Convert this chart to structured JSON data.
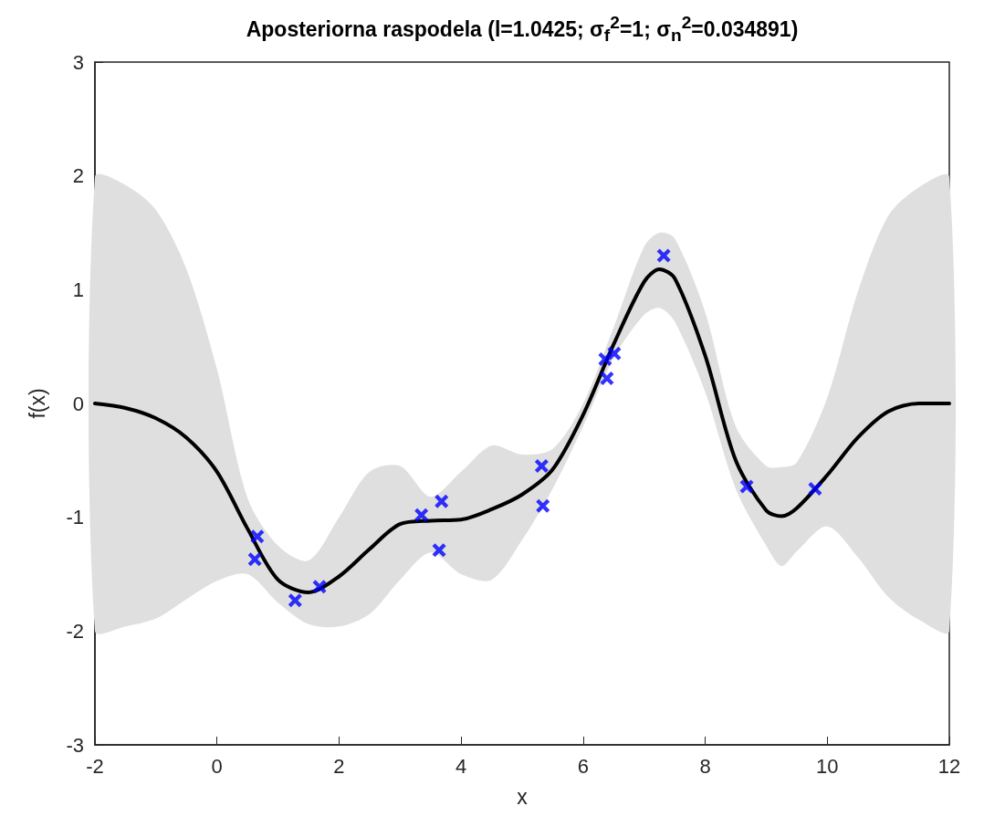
{
  "chart_data": {
    "type": "line",
    "title": "Aposteriorna raspodela (l=1.0425; σ$_{f}$$^{2}$=1; σ$_{n}$$^{2}$=0.034891)",
    "xlabel": "x",
    "ylabel": "f(x)",
    "xlim": [
      -2,
      12
    ],
    "xticks": [
      -2,
      0,
      2,
      4,
      6,
      8,
      10,
      12
    ],
    "ylim": [
      -3,
      3
    ],
    "yticks": [
      -3,
      -2,
      -1,
      0,
      1,
      2,
      3
    ],
    "grid": false,
    "series": [
      {
        "color": "#000000",
        "marker": "none",
        "line_style": "solid",
        "x": [
          -2,
          -1.5,
          -1,
          -0.5,
          0,
          0.5,
          1,
          1.5,
          2,
          2.5,
          3,
          3.5,
          4,
          4.5,
          5,
          5.5,
          6,
          6.5,
          7,
          7.25,
          7.5,
          8,
          8.5,
          9,
          9.25,
          9.5,
          10,
          10.5,
          11,
          11.5,
          12
        ],
        "values": [
          0,
          -0.04,
          -0.13,
          -0.3,
          -0.6,
          -1.1,
          -1.55,
          -1.66,
          -1.52,
          -1.28,
          -1.06,
          -1.03,
          -1.02,
          -0.93,
          -0.8,
          -0.58,
          -0.1,
          0.52,
          1.07,
          1.18,
          1.1,
          0.42,
          -0.5,
          -0.94,
          -0.99,
          -0.92,
          -0.63,
          -0.3,
          -0.07,
          0,
          0
        ],
        "upper": [
          1.99,
          1.92,
          1.7,
          1.18,
          0.3,
          -0.83,
          -1.25,
          -1.38,
          -1.0,
          -0.6,
          -0.55,
          -0.82,
          -0.6,
          -0.37,
          -0.45,
          -0.4,
          0.0,
          0.67,
          1.38,
          1.5,
          1.45,
          0.8,
          -0.2,
          -0.55,
          -0.56,
          -0.52,
          0.05,
          0.98,
          1.65,
          1.9,
          1.99
        ],
        "lower": [
          -2,
          -1.96,
          -1.89,
          -1.72,
          -1.56,
          -1.5,
          -1.75,
          -1.94,
          -1.96,
          -1.85,
          -1.55,
          -1.31,
          -1.5,
          -1.55,
          -1.2,
          -0.75,
          -0.2,
          0.4,
          0.78,
          0.84,
          0.72,
          0.1,
          -0.75,
          -1.25,
          -1.43,
          -1.3,
          -1.08,
          -1.35,
          -1.7,
          -1.9,
          -2
        ]
      },
      {
        "type": "scatter",
        "color": "#0000ff",
        "marker": "cross",
        "x": [
          0.66,
          0.62,
          1.28,
          1.68,
          3.35,
          3.68,
          3.64,
          5.32,
          5.34,
          6.36,
          6.51,
          6.39,
          7.32,
          8.68,
          9.8
        ],
        "values": [
          -1.17,
          -1.37,
          -1.73,
          -1.61,
          -0.98,
          -0.86,
          -1.29,
          -0.55,
          -0.9,
          0.39,
          0.44,
          0.22,
          1.3,
          -0.73,
          -0.75
        ]
      }
    ]
  }
}
